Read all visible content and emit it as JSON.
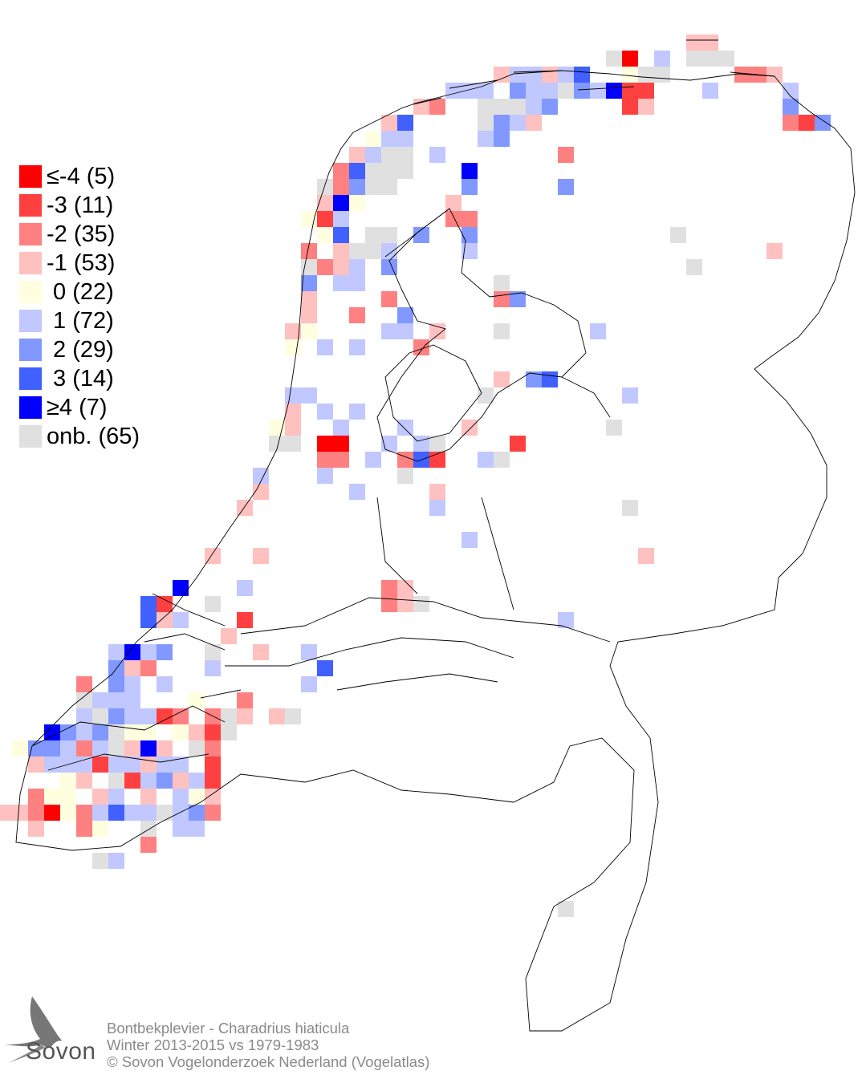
{
  "legend": {
    "items": [
      {
        "label": "≤-4 (5)",
        "color": "#ff0000"
      },
      {
        "label": "-3 (11)",
        "color": "#ff4040"
      },
      {
        "label": "-2 (35)",
        "color": "#ff8080"
      },
      {
        "label": "-1 (53)",
        "color": "#ffc0c0"
      },
      {
        "label": " 0 (22)",
        "color": "#ffffe0"
      },
      {
        "label": " 1 (72)",
        "color": "#c0c8ff"
      },
      {
        "label": " 2 (29)",
        "color": "#8098ff"
      },
      {
        "label": " 3 (14)",
        "color": "#4060ff"
      },
      {
        "label": "≥4 (7)",
        "color": "#0000ff"
      },
      {
        "label": "onb. (65)",
        "color": "#e0e0e0"
      }
    ]
  },
  "credits": {
    "species": "Bontbekplevier - Charadrius hiaticula",
    "period": "Winter 2013-2015 vs 1979-1983",
    "copyright": "© Sovon Vogelonderzoek Nederland (Vogelatlas)"
  },
  "logo": {
    "text": "Sovon"
  }
}
